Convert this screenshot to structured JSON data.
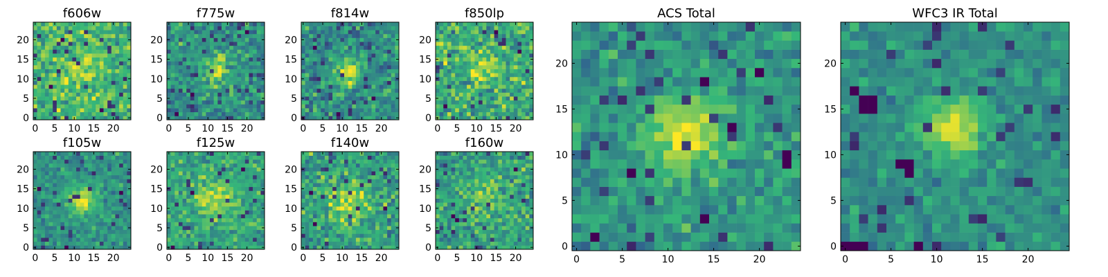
{
  "figure_title": "",
  "colormap": [
    "#440154",
    "#31688e",
    "#35b779",
    "#fde725"
  ],
  "chart_data": [
    {
      "type": "heatmap",
      "title": "f606w",
      "xlim": [
        0,
        25
      ],
      "ylim": [
        0,
        25
      ],
      "xticks": [
        0,
        5,
        10,
        15,
        20
      ],
      "yticks": [
        0,
        5,
        10,
        15,
        20
      ],
      "grid": false,
      "center": [
        12,
        12
      ],
      "source_sigma": 3.2,
      "source_amp": 0.18,
      "noise": 0.2,
      "base": 0.66,
      "seed": 11,
      "dark_spots": [
        [
          4,
          8
        ],
        [
          17,
          2
        ],
        [
          7,
          20
        ]
      ]
    },
    {
      "type": "heatmap",
      "title": "f775w",
      "xlim": [
        0,
        25
      ],
      "ylim": [
        0,
        25
      ],
      "xticks": [
        0,
        5,
        10,
        15,
        20
      ],
      "yticks": [
        0,
        5,
        10,
        15,
        20
      ],
      "grid": false,
      "center": [
        12,
        12
      ],
      "source_sigma": 2.6,
      "source_amp": 0.42,
      "noise": 0.2,
      "base": 0.5,
      "seed": 23,
      "dark_spots": [
        [
          2,
          1
        ],
        [
          20,
          22
        ],
        [
          6,
          6
        ]
      ]
    },
    {
      "type": "heatmap",
      "title": "f814w",
      "xlim": [
        0,
        25
      ],
      "ylim": [
        0,
        25
      ],
      "xticks": [
        0,
        5,
        10,
        15,
        20
      ],
      "yticks": [
        0,
        5,
        10,
        15,
        20
      ],
      "grid": false,
      "center": [
        12,
        12
      ],
      "source_sigma": 2.4,
      "source_amp": 0.45,
      "noise": 0.2,
      "base": 0.5,
      "seed": 37,
      "dark_spots": [
        [
          3,
          18
        ],
        [
          18,
          5
        ],
        [
          9,
          1
        ]
      ]
    },
    {
      "type": "heatmap",
      "title": "f850lp",
      "xlim": [
        0,
        25
      ],
      "ylim": [
        0,
        25
      ],
      "xticks": [
        0,
        5,
        10,
        15,
        20
      ],
      "yticks": [
        0,
        5,
        10,
        15,
        20
      ],
      "grid": false,
      "center": [
        12,
        13
      ],
      "source_sigma": 3.0,
      "source_amp": 0.22,
      "noise": 0.22,
      "base": 0.62,
      "seed": 41,
      "dark_spots": [
        [
          21,
          17
        ],
        [
          2,
          3
        ],
        [
          15,
          22
        ]
      ]
    },
    {
      "type": "heatmap",
      "title": "f105w",
      "xlim": [
        0,
        25
      ],
      "ylim": [
        0,
        25
      ],
      "xticks": [
        0,
        5,
        10,
        15,
        20
      ],
      "yticks": [
        0,
        5,
        10,
        15,
        20
      ],
      "grid": false,
      "center": [
        12,
        12
      ],
      "source_sigma": 2.4,
      "source_amp": 0.42,
      "noise": 0.14,
      "base": 0.52,
      "seed": 53,
      "dark_spots": [
        [
          8,
          0
        ],
        [
          1,
          15
        ],
        [
          22,
          14
        ]
      ]
    },
    {
      "type": "heatmap",
      "title": "f125w",
      "xlim": [
        0,
        25
      ],
      "ylim": [
        0,
        25
      ],
      "xticks": [
        0,
        5,
        10,
        15,
        20
      ],
      "yticks": [
        0,
        5,
        10,
        15,
        20
      ],
      "grid": false,
      "center": [
        12,
        12
      ],
      "source_sigma": 3.2,
      "source_amp": 0.3,
      "noise": 0.16,
      "base": 0.6,
      "seed": 67,
      "dark_spots": [
        [
          1,
          0
        ],
        [
          19,
          20
        ],
        [
          6,
          14
        ]
      ]
    },
    {
      "type": "heatmap",
      "title": "f140w",
      "xlim": [
        0,
        25
      ],
      "ylim": [
        0,
        25
      ],
      "xticks": [
        0,
        5,
        10,
        15,
        20
      ],
      "yticks": [
        0,
        5,
        10,
        15,
        20
      ],
      "grid": false,
      "center": [
        12,
        12
      ],
      "source_sigma": 3.4,
      "source_amp": 0.3,
      "noise": 0.2,
      "base": 0.58,
      "seed": 79,
      "dark_spots": [
        [
          2,
          14
        ],
        [
          21,
          10
        ],
        [
          3,
          6
        ]
      ]
    },
    {
      "type": "heatmap",
      "title": "f160w",
      "xlim": [
        0,
        25
      ],
      "ylim": [
        0,
        25
      ],
      "xticks": [
        0,
        5,
        10,
        15,
        20
      ],
      "yticks": [
        0,
        5,
        10,
        15,
        20
      ],
      "grid": false,
      "center": [
        12,
        13
      ],
      "source_sigma": 3.0,
      "source_amp": 0.26,
      "noise": 0.2,
      "base": 0.58,
      "seed": 83,
      "dark_spots": [
        [
          4,
          8
        ],
        [
          5,
          7
        ],
        [
          20,
          20
        ]
      ]
    },
    {
      "type": "heatmap",
      "title": "ACS Total",
      "xlim": [
        0,
        25
      ],
      "ylim": [
        0,
        25
      ],
      "xticks": [
        0,
        5,
        10,
        15,
        20
      ],
      "yticks": [
        0,
        5,
        10,
        15,
        20
      ],
      "grid": false,
      "center": [
        12,
        12
      ],
      "source_sigma": 2.8,
      "source_amp": 0.45,
      "noise": 0.15,
      "base": 0.52,
      "seed": 97,
      "dark_spots": [
        [
          14,
          18
        ],
        [
          17,
          13
        ],
        [
          20,
          19
        ],
        [
          23,
          10
        ],
        [
          23,
          9
        ],
        [
          2,
          1
        ],
        [
          6,
          8
        ],
        [
          14,
          3
        ]
      ]
    },
    {
      "type": "heatmap",
      "title": "WFC3 IR Total",
      "xlim": [
        0,
        25
      ],
      "ylim": [
        0,
        25
      ],
      "xticks": [
        0,
        5,
        10,
        15,
        20
      ],
      "yticks": [
        0,
        5,
        10,
        15,
        20
      ],
      "grid": false,
      "center": [
        12,
        13
      ],
      "source_sigma": 2.4,
      "source_amp": 0.42,
      "noise": 0.12,
      "base": 0.5,
      "seed": 101,
      "dark_spots": [
        [
          1,
          17
        ],
        [
          2,
          16
        ],
        [
          3,
          16
        ],
        [
          2,
          15
        ],
        [
          3,
          15
        ],
        [
          6,
          9
        ],
        [
          7,
          9
        ],
        [
          7,
          8
        ],
        [
          0,
          0
        ],
        [
          1,
          0
        ],
        [
          2,
          0
        ],
        [
          8,
          0
        ]
      ]
    }
  ]
}
